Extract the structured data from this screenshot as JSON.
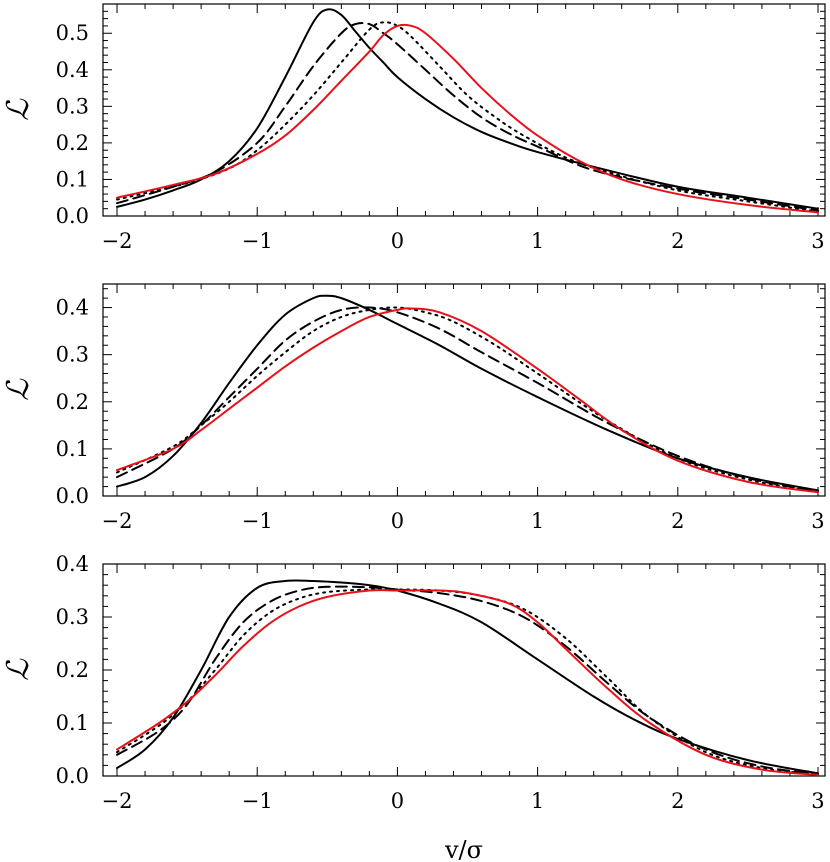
{
  "chart_data": [
    {
      "type": "line",
      "panel": "top",
      "ylabel": "ℒ",
      "xlabel": "",
      "xlim": [
        -2.1,
        3.05
      ],
      "ylim": [
        0.0,
        0.58
      ],
      "xticks": [
        -2,
        -1,
        0,
        1,
        2,
        3
      ],
      "xtick_labels": [
        "−2",
        "−1",
        "0",
        "1",
        "2",
        "3"
      ],
      "yticks": [
        0.0,
        0.1,
        0.2,
        0.3,
        0.4,
        0.5
      ],
      "ytick_labels": [
        "0.0",
        "0.1",
        "0.2",
        "0.3",
        "0.4",
        "0.5"
      ],
      "series": [
        {
          "name": "solid",
          "color": "#000000",
          "dash": "solid",
          "x": [
            -2.0,
            -1.8,
            -1.6,
            -1.4,
            -1.2,
            -1.0,
            -0.8,
            -0.6,
            -0.5,
            -0.4,
            -0.3,
            -0.2,
            -0.1,
            0.0,
            0.2,
            0.4,
            0.6,
            0.8,
            1.0,
            1.5,
            2.0,
            2.5,
            3.0
          ],
          "y": [
            0.025,
            0.045,
            0.07,
            0.1,
            0.15,
            0.24,
            0.38,
            0.53,
            0.565,
            0.55,
            0.505,
            0.46,
            0.42,
            0.38,
            0.32,
            0.27,
            0.23,
            0.2,
            0.175,
            0.125,
            0.08,
            0.05,
            0.02
          ]
        },
        {
          "name": "dashed",
          "color": "#000000",
          "dash": "dashed",
          "x": [
            -2.0,
            -1.6,
            -1.3,
            -1.0,
            -0.8,
            -0.6,
            -0.4,
            -0.3,
            -0.2,
            -0.1,
            0.0,
            0.2,
            0.4,
            0.6,
            0.8,
            1.0,
            1.4,
            2.0,
            2.5,
            3.0
          ],
          "y": [
            0.035,
            0.08,
            0.12,
            0.2,
            0.3,
            0.41,
            0.5,
            0.525,
            0.525,
            0.5,
            0.47,
            0.4,
            0.33,
            0.27,
            0.225,
            0.19,
            0.125,
            0.075,
            0.045,
            0.015
          ]
        },
        {
          "name": "dotted",
          "color": "#000000",
          "dash": "dotted",
          "x": [
            -2.0,
            -1.5,
            -1.2,
            -1.0,
            -0.8,
            -0.6,
            -0.4,
            -0.2,
            -0.1,
            0.0,
            0.1,
            0.3,
            0.5,
            0.7,
            0.9,
            1.2,
            1.5,
            2.0,
            2.5,
            3.0
          ],
          "y": [
            0.045,
            0.09,
            0.13,
            0.18,
            0.25,
            0.33,
            0.42,
            0.51,
            0.53,
            0.52,
            0.49,
            0.41,
            0.33,
            0.27,
            0.22,
            0.16,
            0.12,
            0.07,
            0.04,
            0.012
          ]
        },
        {
          "name": "red",
          "color": "#e8111a",
          "dash": "solid",
          "x": [
            -2.0,
            -1.6,
            -1.3,
            -1.0,
            -0.8,
            -0.6,
            -0.4,
            -0.2,
            -0.1,
            0.0,
            0.1,
            0.2,
            0.4,
            0.6,
            0.8,
            1.0,
            1.3,
            1.6,
            2.0,
            2.5,
            3.0
          ],
          "y": [
            0.05,
            0.085,
            0.115,
            0.17,
            0.22,
            0.29,
            0.37,
            0.45,
            0.495,
            0.52,
            0.52,
            0.5,
            0.43,
            0.35,
            0.28,
            0.22,
            0.15,
            0.1,
            0.06,
            0.03,
            0.01
          ]
        }
      ]
    },
    {
      "type": "line",
      "panel": "middle",
      "ylabel": "ℒ",
      "xlabel": "",
      "xlim": [
        -2.1,
        3.05
      ],
      "ylim": [
        0.0,
        0.45
      ],
      "xticks": [
        -2,
        -1,
        0,
        1,
        2,
        3
      ],
      "xtick_labels": [
        "−2",
        "−1",
        "0",
        "1",
        "2",
        "3"
      ],
      "yticks": [
        0.0,
        0.1,
        0.2,
        0.3,
        0.4
      ],
      "ytick_labels": [
        "0.0",
        "0.1",
        "0.2",
        "0.3",
        "0.4"
      ],
      "series": [
        {
          "name": "solid",
          "color": "#000000",
          "dash": "solid",
          "x": [
            -2.0,
            -1.8,
            -1.6,
            -1.4,
            -1.2,
            -1.0,
            -0.8,
            -0.6,
            -0.5,
            -0.4,
            -0.2,
            0.0,
            0.3,
            0.6,
            1.0,
            1.5,
            2.0,
            2.5,
            3.0
          ],
          "y": [
            0.02,
            0.04,
            0.085,
            0.155,
            0.24,
            0.32,
            0.385,
            0.42,
            0.425,
            0.42,
            0.395,
            0.365,
            0.32,
            0.27,
            0.21,
            0.14,
            0.08,
            0.04,
            0.012
          ]
        },
        {
          "name": "dashed",
          "color": "#000000",
          "dash": "dashed",
          "x": [
            -2.0,
            -1.6,
            -1.4,
            -1.2,
            -1.0,
            -0.8,
            -0.6,
            -0.4,
            -0.2,
            0.0,
            0.3,
            0.6,
            1.0,
            1.5,
            2.0,
            2.5,
            3.0
          ],
          "y": [
            0.04,
            0.1,
            0.15,
            0.21,
            0.27,
            0.33,
            0.37,
            0.395,
            0.4,
            0.39,
            0.355,
            0.305,
            0.24,
            0.155,
            0.085,
            0.038,
            0.01
          ]
        },
        {
          "name": "dotted",
          "color": "#000000",
          "dash": "dotted",
          "x": [
            -2.0,
            -1.6,
            -1.4,
            -1.2,
            -1.0,
            -0.8,
            -0.6,
            -0.4,
            -0.2,
            0.0,
            0.2,
            0.4,
            0.7,
            1.0,
            1.5,
            2.0,
            2.5,
            3.0
          ],
          "y": [
            0.05,
            0.105,
            0.15,
            0.2,
            0.255,
            0.305,
            0.35,
            0.38,
            0.395,
            0.4,
            0.39,
            0.37,
            0.32,
            0.26,
            0.16,
            0.08,
            0.035,
            0.008
          ]
        },
        {
          "name": "red",
          "color": "#e8111a",
          "dash": "solid",
          "x": [
            -2.0,
            -1.6,
            -1.4,
            -1.2,
            -1.0,
            -0.8,
            -0.6,
            -0.4,
            -0.2,
            0.0,
            0.1,
            0.3,
            0.6,
            1.0,
            1.3,
            1.6,
            2.0,
            2.5,
            3.0
          ],
          "y": [
            0.055,
            0.1,
            0.14,
            0.185,
            0.23,
            0.275,
            0.315,
            0.35,
            0.38,
            0.395,
            0.398,
            0.39,
            0.35,
            0.27,
            0.205,
            0.14,
            0.075,
            0.03,
            0.008
          ]
        }
      ]
    },
    {
      "type": "line",
      "panel": "bottom",
      "ylabel": "ℒ",
      "xlabel": "v/σ",
      "xlim": [
        -2.1,
        3.05
      ],
      "ylim": [
        0.0,
        0.4
      ],
      "xticks": [
        -2,
        -1,
        0,
        1,
        2,
        3
      ],
      "xtick_labels": [
        "−2",
        "−1",
        "0",
        "1",
        "2",
        "3"
      ],
      "yticks": [
        0.0,
        0.1,
        0.2,
        0.3,
        0.4
      ],
      "ytick_labels": [
        "0.0",
        "0.1",
        "0.2",
        "0.3",
        "0.4"
      ],
      "series": [
        {
          "name": "solid",
          "color": "#000000",
          "dash": "solid",
          "x": [
            -2.0,
            -1.8,
            -1.6,
            -1.4,
            -1.2,
            -1.0,
            -0.8,
            -0.6,
            -0.4,
            -0.2,
            0.0,
            0.3,
            0.6,
            1.0,
            1.4,
            1.7,
            2.0,
            2.5,
            3.0
          ],
          "y": [
            0.015,
            0.05,
            0.11,
            0.2,
            0.3,
            0.355,
            0.368,
            0.368,
            0.365,
            0.36,
            0.35,
            0.325,
            0.29,
            0.22,
            0.15,
            0.105,
            0.07,
            0.03,
            0.005
          ]
        },
        {
          "name": "dashed",
          "color": "#000000",
          "dash": "dashed",
          "x": [
            -2.0,
            -1.7,
            -1.5,
            -1.3,
            -1.1,
            -0.9,
            -0.7,
            -0.5,
            -0.2,
            0.0,
            0.3,
            0.6,
            0.9,
            1.2,
            1.5,
            1.8,
            2.2,
            2.6,
            3.0
          ],
          "y": [
            0.04,
            0.085,
            0.135,
            0.22,
            0.29,
            0.33,
            0.35,
            0.357,
            0.356,
            0.352,
            0.345,
            0.33,
            0.3,
            0.245,
            0.175,
            0.11,
            0.05,
            0.018,
            0.004
          ]
        },
        {
          "name": "dotted",
          "color": "#000000",
          "dash": "dotted",
          "x": [
            -2.0,
            -1.7,
            -1.5,
            -1.3,
            -1.1,
            -0.9,
            -0.7,
            -0.5,
            -0.2,
            0.0,
            0.3,
            0.6,
            0.9,
            1.2,
            1.5,
            1.8,
            2.2,
            2.6,
            3.0
          ],
          "y": [
            0.045,
            0.095,
            0.14,
            0.2,
            0.265,
            0.31,
            0.335,
            0.347,
            0.352,
            0.352,
            0.35,
            0.34,
            0.315,
            0.26,
            0.185,
            0.11,
            0.045,
            0.015,
            0.003
          ]
        },
        {
          "name": "red",
          "color": "#e8111a",
          "dash": "solid",
          "x": [
            -2.0,
            -1.7,
            -1.5,
            -1.3,
            -1.1,
            -0.9,
            -0.7,
            -0.5,
            -0.2,
            0.0,
            0.3,
            0.5,
            0.8,
            1.0,
            1.2,
            1.5,
            1.8,
            2.2,
            2.6,
            3.0
          ],
          "y": [
            0.05,
            0.1,
            0.14,
            0.19,
            0.245,
            0.29,
            0.32,
            0.338,
            0.35,
            0.35,
            0.35,
            0.345,
            0.325,
            0.29,
            0.24,
            0.165,
            0.1,
            0.04,
            0.012,
            0.002
          ]
        }
      ]
    }
  ]
}
